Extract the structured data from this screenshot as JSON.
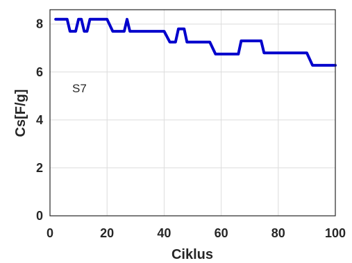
{
  "chart_data": {
    "type": "line",
    "title": "",
    "xlabel": "Ciklus",
    "ylabel": "Cs[F/g]",
    "xlim": [
      0,
      100
    ],
    "ylim": [
      0,
      8.6
    ],
    "xticks": [
      "0",
      "20",
      "40",
      "60",
      "80",
      "100"
    ],
    "yticks": [
      "0",
      "2",
      "4",
      "6",
      "8"
    ],
    "grid": true,
    "annotation": "S7",
    "series": [
      {
        "color": "#0000cc",
        "x": [
          2,
          6,
          7,
          9,
          10,
          11,
          12,
          13,
          14,
          18,
          19,
          20,
          22,
          26,
          27,
          28,
          30,
          39,
          40,
          42,
          44,
          45,
          47,
          48,
          52,
          56,
          58,
          66,
          67,
          70,
          74,
          75,
          78,
          90,
          92,
          100
        ],
        "y": [
          8.2,
          8.2,
          7.7,
          7.7,
          8.2,
          8.2,
          7.7,
          7.7,
          8.2,
          8.2,
          8.2,
          8.2,
          7.7,
          7.7,
          8.2,
          7.7,
          7.7,
          7.7,
          7.7,
          7.25,
          7.25,
          7.8,
          7.8,
          7.25,
          7.25,
          7.25,
          6.75,
          6.75,
          7.3,
          7.3,
          7.3,
          6.8,
          6.8,
          6.8,
          6.28,
          6.28
        ]
      }
    ]
  }
}
